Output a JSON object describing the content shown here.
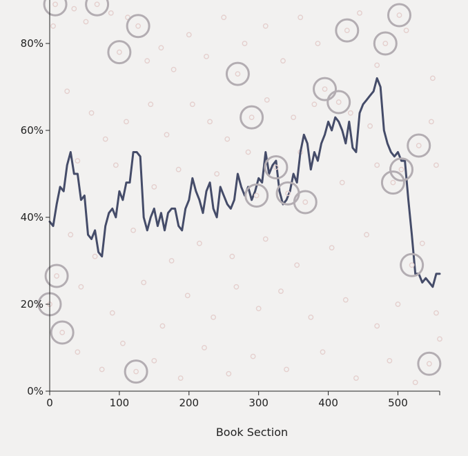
{
  "chart_data": {
    "type": "line",
    "title": "",
    "xlabel": "Book Section",
    "ylabel": "",
    "xlim": [
      0,
      560
    ],
    "ylim": [
      0,
      0.9
    ],
    "x_ticks": [
      0,
      100,
      200,
      300,
      400,
      500
    ],
    "x_tick_labels": [
      "0",
      "100",
      "200",
      "300",
      "400",
      "500"
    ],
    "y_ticks": [
      0,
      0.2,
      0.4,
      0.6,
      0.8
    ],
    "y_tick_labels": [
      "0%",
      "20%",
      "40%",
      "60%",
      "80%"
    ],
    "grid": false,
    "legend": "none",
    "colors": {
      "line": "#454c69",
      "big_circle": "#b3adb2",
      "small_circle": "#e4cfcd",
      "axis": "#222222"
    },
    "series": [
      {
        "x": [
          0,
          5,
          10,
          15,
          20,
          25,
          30,
          35,
          40,
          45,
          50,
          55,
          60,
          65,
          70,
          75,
          80,
          85,
          90,
          95,
          100,
          105,
          110,
          115,
          120,
          125,
          130,
          135,
          140,
          145,
          150,
          155,
          160,
          165,
          170,
          175,
          180,
          185,
          190,
          195,
          200,
          205,
          210,
          215,
          220,
          225,
          230,
          235,
          240,
          245,
          250,
          255,
          260,
          265,
          270,
          275,
          280,
          285,
          290,
          295,
          300,
          305,
          310,
          315,
          320,
          325,
          330,
          335,
          340,
          345,
          350,
          355,
          360,
          365,
          370,
          375,
          380,
          385,
          390,
          395,
          400,
          405,
          410,
          415,
          420,
          425,
          430,
          435,
          440,
          445,
          450,
          455,
          460,
          465,
          470,
          475,
          480,
          485,
          490,
          495,
          500,
          505,
          510,
          515,
          520,
          525,
          530,
          535,
          540,
          545,
          550,
          555,
          560
        ],
        "values": [
          0.39,
          0.38,
          0.43,
          0.47,
          0.46,
          0.52,
          0.55,
          0.5,
          0.5,
          0.44,
          0.45,
          0.36,
          0.35,
          0.37,
          0.32,
          0.31,
          0.38,
          0.41,
          0.42,
          0.4,
          0.46,
          0.44,
          0.48,
          0.48,
          0.55,
          0.55,
          0.54,
          0.4,
          0.37,
          0.4,
          0.42,
          0.38,
          0.41,
          0.37,
          0.41,
          0.42,
          0.42,
          0.38,
          0.37,
          0.42,
          0.44,
          0.49,
          0.46,
          0.44,
          0.41,
          0.46,
          0.48,
          0.42,
          0.4,
          0.47,
          0.45,
          0.43,
          0.42,
          0.44,
          0.5,
          0.47,
          0.45,
          0.47,
          0.44,
          0.46,
          0.49,
          0.48,
          0.55,
          0.5,
          0.52,
          0.53,
          0.46,
          0.43,
          0.44,
          0.46,
          0.5,
          0.48,
          0.55,
          0.59,
          0.57,
          0.51,
          0.55,
          0.53,
          0.57,
          0.59,
          0.62,
          0.6,
          0.63,
          0.62,
          0.6,
          0.57,
          0.62,
          0.56,
          0.55,
          0.64,
          0.66,
          0.67,
          0.68,
          0.69,
          0.72,
          0.7,
          0.6,
          0.57,
          0.55,
          0.54,
          0.55,
          0.53,
          0.53,
          0.44,
          0.36,
          0.27,
          0.27,
          0.25,
          0.26,
          0.25,
          0.24,
          0.27,
          0.27
        ]
      }
    ],
    "big_circles": [
      {
        "x": 8,
        "y": 0.89
      },
      {
        "x": 68,
        "y": 0.89
      },
      {
        "x": 127,
        "y": 0.84
      },
      {
        "x": 100,
        "y": 0.78
      },
      {
        "x": 270,
        "y": 0.73
      },
      {
        "x": 290,
        "y": 0.63
      },
      {
        "x": 395,
        "y": 0.695
      },
      {
        "x": 415,
        "y": 0.665
      },
      {
        "x": 427,
        "y": 0.83
      },
      {
        "x": 482,
        "y": 0.8
      },
      {
        "x": 502,
        "y": 0.865
      },
      {
        "x": 530,
        "y": 0.565
      },
      {
        "x": 505,
        "y": 0.51
      },
      {
        "x": 493,
        "y": 0.48
      },
      {
        "x": 325,
        "y": 0.515
      },
      {
        "x": 297,
        "y": 0.45
      },
      {
        "x": 342,
        "y": 0.455
      },
      {
        "x": 367,
        "y": 0.435
      },
      {
        "x": 10,
        "y": 0.265
      },
      {
        "x": 0,
        "y": 0.2
      },
      {
        "x": 18,
        "y": 0.135
      },
      {
        "x": 124,
        "y": 0.045
      },
      {
        "x": 520,
        "y": 0.29
      },
      {
        "x": 545,
        "y": 0.063
      }
    ],
    "small_circles": [
      {
        "x": 5,
        "y": 0.84
      },
      {
        "x": 35,
        "y": 0.88
      },
      {
        "x": 52,
        "y": 0.85
      },
      {
        "x": 88,
        "y": 0.87
      },
      {
        "x": 112,
        "y": 0.86
      },
      {
        "x": 140,
        "y": 0.76
      },
      {
        "x": 160,
        "y": 0.79
      },
      {
        "x": 178,
        "y": 0.74
      },
      {
        "x": 200,
        "y": 0.82
      },
      {
        "x": 225,
        "y": 0.77
      },
      {
        "x": 250,
        "y": 0.86
      },
      {
        "x": 280,
        "y": 0.8
      },
      {
        "x": 310,
        "y": 0.84
      },
      {
        "x": 335,
        "y": 0.76
      },
      {
        "x": 360,
        "y": 0.86
      },
      {
        "x": 385,
        "y": 0.8
      },
      {
        "x": 445,
        "y": 0.87
      },
      {
        "x": 470,
        "y": 0.75
      },
      {
        "x": 512,
        "y": 0.83
      },
      {
        "x": 550,
        "y": 0.72
      },
      {
        "x": 25,
        "y": 0.69
      },
      {
        "x": 60,
        "y": 0.64
      },
      {
        "x": 80,
        "y": 0.58
      },
      {
        "x": 110,
        "y": 0.62
      },
      {
        "x": 145,
        "y": 0.66
      },
      {
        "x": 168,
        "y": 0.59
      },
      {
        "x": 205,
        "y": 0.66
      },
      {
        "x": 230,
        "y": 0.62
      },
      {
        "x": 255,
        "y": 0.58
      },
      {
        "x": 312,
        "y": 0.67
      },
      {
        "x": 350,
        "y": 0.63
      },
      {
        "x": 380,
        "y": 0.66
      },
      {
        "x": 432,
        "y": 0.64
      },
      {
        "x": 460,
        "y": 0.61
      },
      {
        "x": 548,
        "y": 0.62
      },
      {
        "x": 40,
        "y": 0.53
      },
      {
        "x": 95,
        "y": 0.52
      },
      {
        "x": 150,
        "y": 0.47
      },
      {
        "x": 185,
        "y": 0.51
      },
      {
        "x": 240,
        "y": 0.5
      },
      {
        "x": 285,
        "y": 0.55
      },
      {
        "x": 360,
        "y": 0.55
      },
      {
        "x": 420,
        "y": 0.48
      },
      {
        "x": 470,
        "y": 0.52
      },
      {
        "x": 555,
        "y": 0.52
      },
      {
        "x": 30,
        "y": 0.36
      },
      {
        "x": 65,
        "y": 0.31
      },
      {
        "x": 120,
        "y": 0.37
      },
      {
        "x": 175,
        "y": 0.3
      },
      {
        "x": 215,
        "y": 0.34
      },
      {
        "x": 262,
        "y": 0.31
      },
      {
        "x": 310,
        "y": 0.35
      },
      {
        "x": 355,
        "y": 0.29
      },
      {
        "x": 405,
        "y": 0.33
      },
      {
        "x": 455,
        "y": 0.36
      },
      {
        "x": 535,
        "y": 0.34
      },
      {
        "x": 45,
        "y": 0.24
      },
      {
        "x": 90,
        "y": 0.18
      },
      {
        "x": 135,
        "y": 0.25
      },
      {
        "x": 162,
        "y": 0.15
      },
      {
        "x": 198,
        "y": 0.22
      },
      {
        "x": 235,
        "y": 0.17
      },
      {
        "x": 268,
        "y": 0.24
      },
      {
        "x": 300,
        "y": 0.19
      },
      {
        "x": 332,
        "y": 0.23
      },
      {
        "x": 375,
        "y": 0.17
      },
      {
        "x": 425,
        "y": 0.21
      },
      {
        "x": 470,
        "y": 0.15
      },
      {
        "x": 500,
        "y": 0.2
      },
      {
        "x": 555,
        "y": 0.18
      },
      {
        "x": 40,
        "y": 0.09
      },
      {
        "x": 75,
        "y": 0.05
      },
      {
        "x": 105,
        "y": 0.11
      },
      {
        "x": 150,
        "y": 0.07
      },
      {
        "x": 188,
        "y": 0.03
      },
      {
        "x": 222,
        "y": 0.1
      },
      {
        "x": 257,
        "y": 0.04
      },
      {
        "x": 292,
        "y": 0.08
      },
      {
        "x": 340,
        "y": 0.05
      },
      {
        "x": 392,
        "y": 0.09
      },
      {
        "x": 440,
        "y": 0.03
      },
      {
        "x": 488,
        "y": 0.07
      },
      {
        "x": 525,
        "y": 0.02
      },
      {
        "x": 560,
        "y": 0.12
      }
    ]
  }
}
